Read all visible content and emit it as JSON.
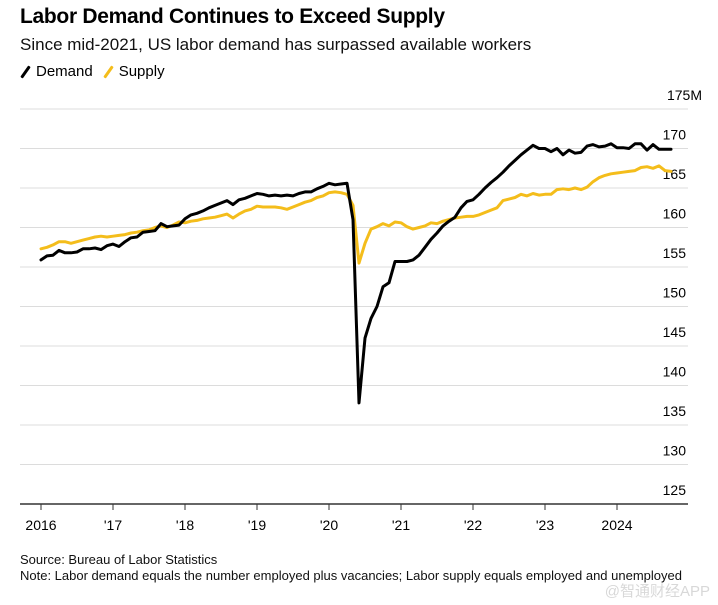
{
  "chart_data": {
    "type": "line",
    "title": "Labor Demand Continues to Exceed Supply",
    "subtitle": "Since mid-2021, US labor demand has surpassed available workers",
    "xlabel": "",
    "ylabel": "",
    "unit_suffix": "M",
    "ylim": [
      125,
      175
    ],
    "yticks": [
      125,
      130,
      135,
      140,
      145,
      150,
      155,
      160,
      165,
      170,
      175
    ],
    "ytick_labels": [
      "125",
      "130",
      "135",
      "140",
      "145",
      "150",
      "155",
      "160",
      "165",
      "170",
      "175M"
    ],
    "xlim": [
      2015.75,
      2025.0
    ],
    "xticks": [
      2016,
      2017,
      2018,
      2019,
      2020,
      2021,
      2022,
      2023,
      2024
    ],
    "xtick_labels": [
      "2016",
      "'17",
      "'18",
      "'19",
      "'20",
      "'21",
      "'22",
      "'23",
      "2024"
    ],
    "grid": true,
    "legend_position": "top-left",
    "x_start": 2016.0,
    "x_step_months": 1,
    "series": [
      {
        "name": "Demand",
        "color": "#000000",
        "values": [
          155.9,
          156.4,
          156.5,
          157.1,
          156.8,
          156.8,
          156.9,
          157.3,
          157.3,
          157.4,
          157.2,
          157.7,
          157.9,
          157.6,
          158.2,
          158.7,
          158.8,
          159.4,
          159.5,
          159.6,
          160.5,
          160.1,
          160.2,
          160.3,
          161.1,
          161.6,
          161.8,
          162.1,
          162.5,
          162.8,
          163.1,
          163.4,
          162.9,
          163.5,
          163.7,
          164.0,
          164.3,
          164.2,
          164.0,
          164.1,
          164.0,
          164.1,
          164.0,
          164.3,
          164.5,
          164.5,
          164.9,
          165.2,
          165.6,
          165.4,
          165.5,
          165.6,
          161.0,
          137.8,
          146.0,
          148.5,
          150.0,
          152.5,
          153.0,
          155.7,
          155.7,
          155.7,
          155.9,
          156.5,
          157.5,
          158.5,
          159.3,
          160.2,
          160.8,
          161.3,
          162.5,
          163.3,
          163.5,
          164.2,
          165.0,
          165.7,
          166.3,
          167.0,
          167.8,
          168.5,
          169.2,
          169.8,
          170.4,
          170.0,
          170.0,
          169.6,
          170.0,
          169.2,
          169.8,
          169.4,
          169.5,
          170.3,
          170.5,
          170.2,
          170.3,
          170.6,
          170.1,
          170.1,
          170.0,
          170.6,
          170.6,
          169.8,
          170.5,
          169.9,
          169.9,
          169.9
        ]
      },
      {
        "name": "Supply",
        "color": "#f4bd1b",
        "values": [
          157.3,
          157.5,
          157.8,
          158.2,
          158.2,
          158.0,
          158.2,
          158.4,
          158.6,
          158.8,
          158.9,
          158.8,
          158.9,
          159.0,
          159.1,
          159.3,
          159.4,
          159.6,
          159.7,
          160.0,
          160.2,
          160.0,
          160.3,
          160.7,
          160.6,
          160.8,
          160.9,
          161.1,
          161.2,
          161.3,
          161.5,
          161.7,
          161.2,
          161.7,
          162.1,
          162.3,
          162.7,
          162.6,
          162.6,
          162.6,
          162.5,
          162.3,
          162.6,
          162.9,
          163.2,
          163.4,
          163.8,
          164.0,
          164.4,
          164.5,
          164.4,
          164.2,
          162.8,
          155.5,
          158.0,
          159.8,
          160.1,
          160.5,
          160.2,
          160.7,
          160.6,
          160.1,
          159.8,
          160.0,
          160.2,
          160.6,
          160.5,
          160.8,
          161.0,
          161.2,
          161.3,
          161.4,
          161.4,
          161.6,
          161.9,
          162.2,
          162.5,
          163.4,
          163.6,
          163.8,
          164.2,
          164.0,
          164.3,
          164.1,
          164.2,
          164.2,
          164.8,
          164.9,
          164.8,
          165.0,
          164.8,
          165.1,
          165.8,
          166.3,
          166.6,
          166.8,
          166.9,
          167.0,
          167.1,
          167.2,
          167.6,
          167.7,
          167.5,
          167.8,
          167.2,
          167.1
        ]
      }
    ]
  },
  "footer": {
    "source": "Source: Bureau of Labor Statistics",
    "note": "Note: Labor demand equals the number employed plus vacancies; Labor supply equals employed and unemployed"
  },
  "watermark": "@智通财经APP"
}
